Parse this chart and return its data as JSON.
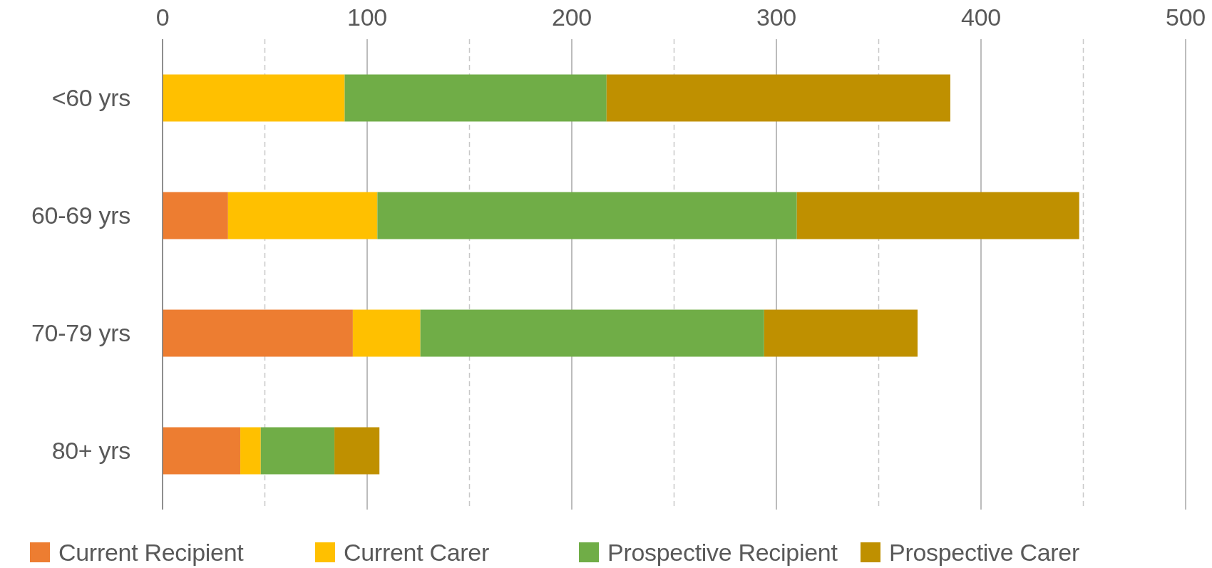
{
  "chart_data": {
    "type": "bar",
    "orientation": "horizontal",
    "stacked": true,
    "categories": [
      "<60 yrs",
      "60-69 yrs",
      "70-79 yrs",
      "80+ yrs"
    ],
    "series": [
      {
        "name": "Current Recipient",
        "color": "#ed7d31",
        "values": [
          0,
          32,
          93,
          38
        ]
      },
      {
        "name": "Current Carer",
        "color": "#ffc000",
        "values": [
          89,
          73,
          33,
          10
        ]
      },
      {
        "name": "Prospective Recipient",
        "color": "#70ad47",
        "values": [
          128,
          205,
          168,
          36
        ]
      },
      {
        "name": "Prospective Carer",
        "color": "#bf9000",
        "values": [
          168,
          138,
          75,
          22
        ]
      }
    ],
    "xlim": [
      0,
      500
    ],
    "xticks": [
      0,
      {
        "value": 50,
        "label": null
      },
      100,
      {
        "value": 150,
        "label": null
      },
      200,
      {
        "value": 250,
        "label": null
      },
      300,
      {
        "value": 350,
        "label": null
      },
      400,
      {
        "value": 450,
        "label": null
      },
      500
    ],
    "grid": "x",
    "legend": "bottom"
  }
}
